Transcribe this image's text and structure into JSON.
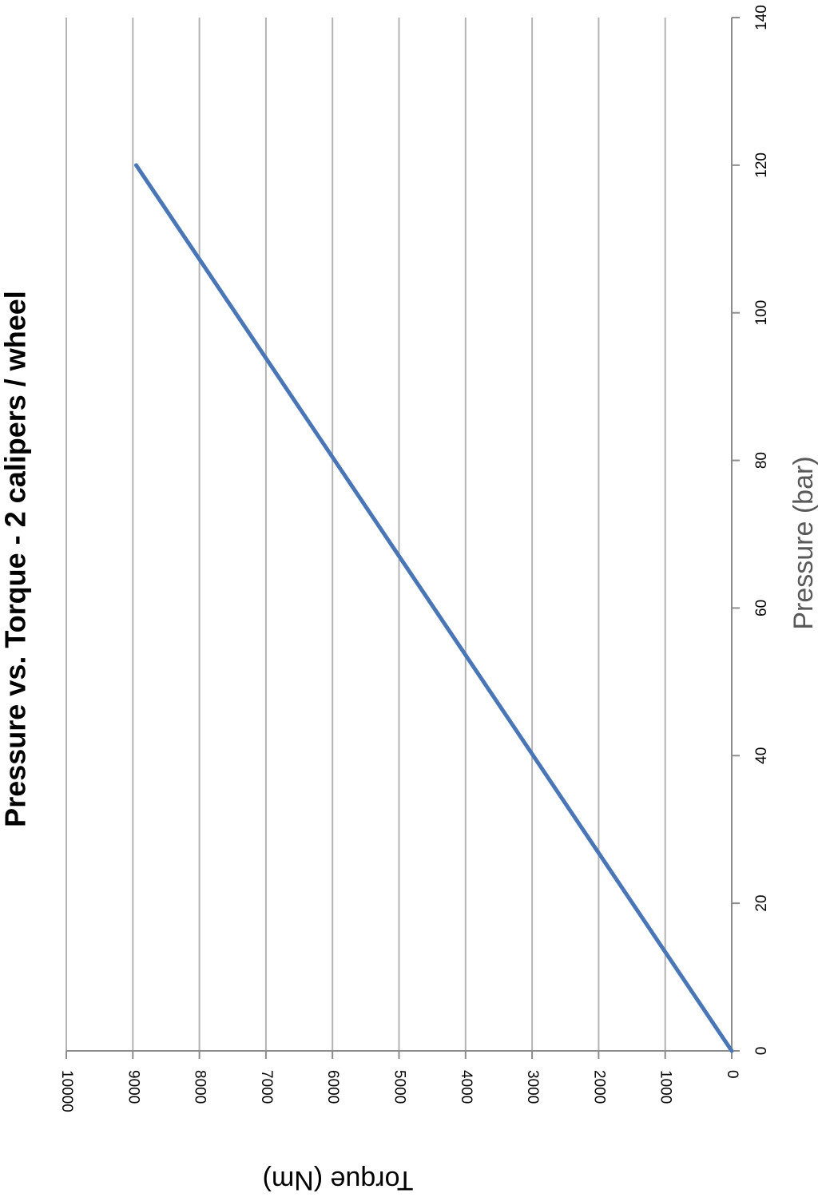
{
  "chart_data": {
    "type": "line",
    "title": "Pressure vs. Torque - 2 calipers / wheel",
    "xlabel": "Pressure (bar)",
    "ylabel": "Torque (Nm)",
    "xlim": [
      0,
      140
    ],
    "ylim": [
      0,
      10000
    ],
    "x_ticks": [
      "0",
      "20",
      "40",
      "60",
      "80",
      "100",
      "120",
      "140"
    ],
    "y_ticks": [
      "0",
      "1000",
      "2000",
      "3000",
      "4000",
      "5000",
      "6000",
      "7000",
      "8000",
      "9000",
      "10000"
    ],
    "grid": "horizontal-major",
    "legend": "none",
    "rotation": "90deg clockwise",
    "series": [
      {
        "x": [
          0,
          120
        ],
        "y": [
          0,
          8950
        ],
        "color": "#4a76b6"
      }
    ],
    "colors": {
      "line": "#4a76b6",
      "grid": "#b3b3b3",
      "axis": "#8c8c8c",
      "xlabel": "#595959",
      "title": "#000000"
    }
  }
}
